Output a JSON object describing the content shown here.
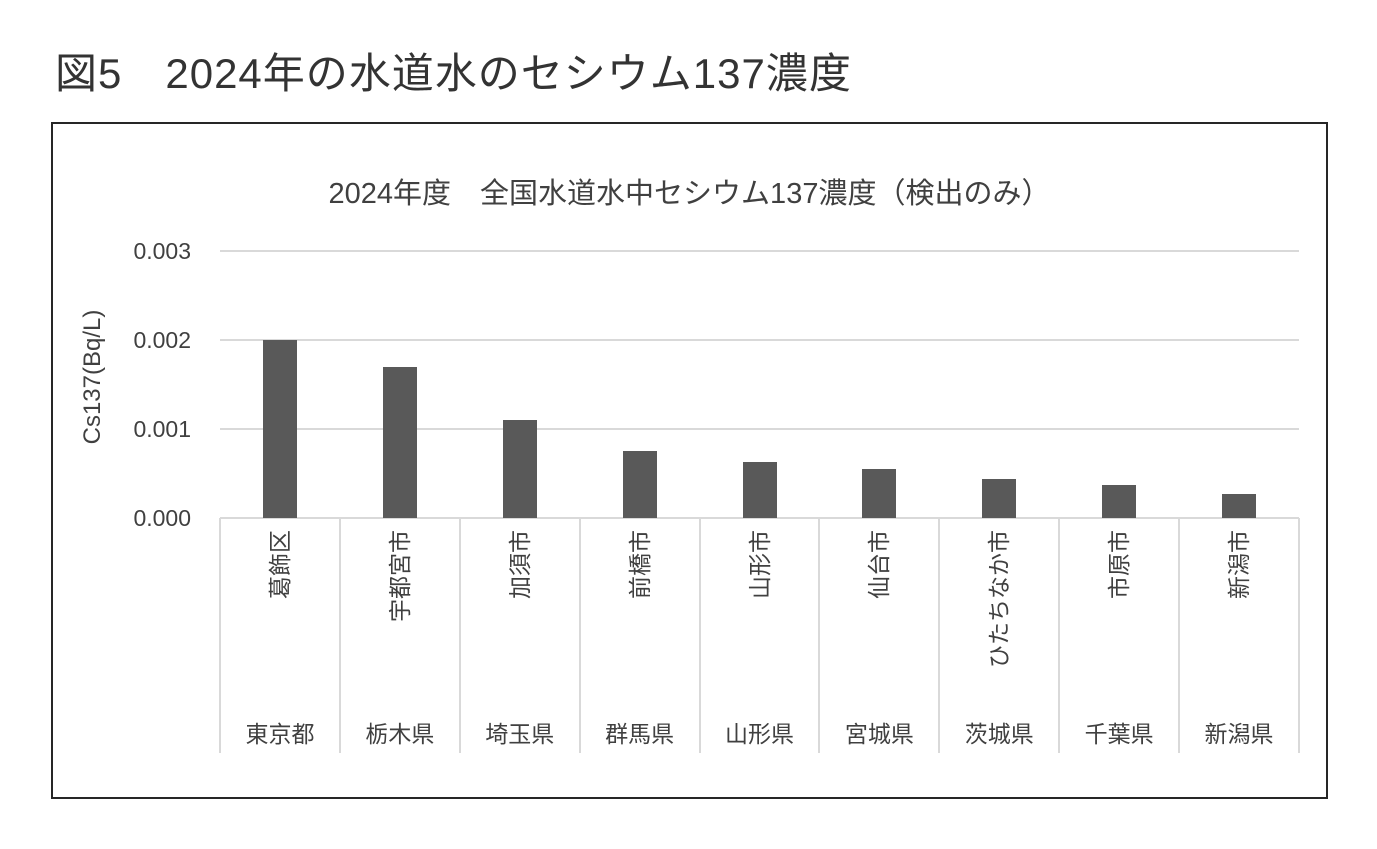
{
  "page": {
    "heading": "図5　2024年の水道水のセシウム137濃度"
  },
  "chart_data": {
    "type": "bar",
    "title": "2024年度　全国水道水中セシウム137濃度（検出のみ）",
    "ylabel": "Cs137(Bq/L)",
    "xlabel": "",
    "ylim": [
      0,
      0.003
    ],
    "ytick_labels": [
      "0.000",
      "0.001",
      "0.002",
      "0.003"
    ],
    "grid": true,
    "legend": false,
    "bar_color": "#595959",
    "gridline_color": "#d9d9d9",
    "categories": [
      "葛飾区",
      "宇都宮市",
      "加須市",
      "前橋市",
      "山形市",
      "仙台市",
      "ひたちなか市",
      "市原市",
      "新潟市"
    ],
    "group_labels": [
      "東京都",
      "栃木県",
      "埼玉県",
      "群馬県",
      "山形県",
      "宮城県",
      "茨城県",
      "千葉県",
      "新潟県"
    ],
    "values": [
      0.002,
      0.0017,
      0.0011,
      0.00075,
      0.00063,
      0.00055,
      0.00044,
      0.00037,
      0.00027
    ]
  }
}
